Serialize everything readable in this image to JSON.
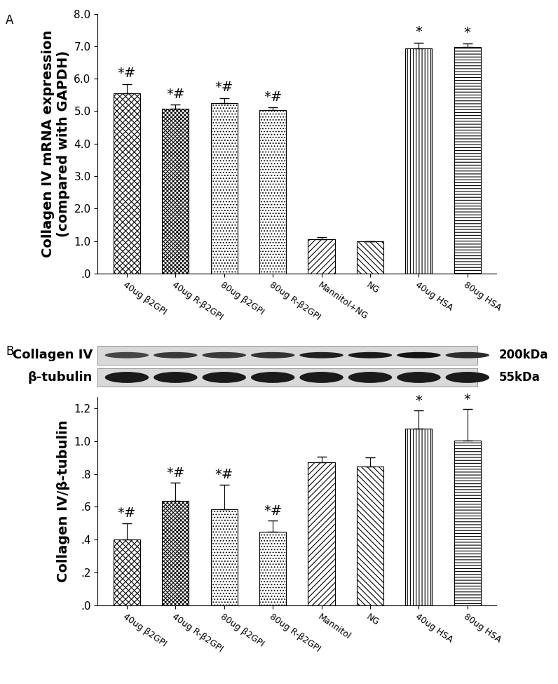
{
  "chart_data": [
    {
      "type": "bar",
      "panel": "A",
      "y_label": "Collagen IV mRNA expression\n(compared with GAPDH)",
      "categories": [
        "40ug β2GPI",
        "40ug R-β2GPI",
        "80ug β2GPI",
        "80ug R-β2GPI",
        "Mannitol+NG",
        "NG",
        "40ug HSA",
        "80ug HSA"
      ],
      "values": [
        5.55,
        5.08,
        5.25,
        5.03,
        1.05,
        1.0,
        6.93,
        6.97
      ],
      "errors": [
        0.28,
        0.12,
        0.15,
        0.08,
        0.08,
        0.0,
        0.18,
        0.12
      ],
      "annotations": [
        "*#",
        "*#",
        "*#",
        "*#",
        null,
        null,
        "*",
        "*"
      ],
      "color": "#ffffff",
      "ylim": [
        0,
        8
      ],
      "yticks": [
        {
          "value": 0,
          "label": ".0"
        },
        {
          "value": 1,
          "label": "1.0"
        },
        {
          "value": 2,
          "label": "2.0"
        },
        {
          "value": 3,
          "label": "3.0"
        },
        {
          "value": 4,
          "label": "4.0"
        },
        {
          "value": 5,
          "label": "5.0"
        },
        {
          "value": 6,
          "label": "6.0"
        },
        {
          "value": 7,
          "label": "7.0"
        },
        {
          "value": 8,
          "label": "8.0"
        }
      ],
      "grid": false
    },
    {
      "type": "bar",
      "panel": "B",
      "blot": [
        {
          "label": "Collagen IV",
          "size": "200kDa"
        },
        {
          "label": "β-tubulin",
          "size": "55kDa"
        }
      ],
      "y_label": "Collagen IV/β-tubulin",
      "categories": [
        "40ug β2GPI",
        "40ug R-β2GPI",
        "80ug β2GPI",
        "80ug R-β2GPI",
        "Mannitol",
        "NG",
        "40ug HSA",
        "80ug HSA"
      ],
      "values": [
        0.4,
        0.635,
        0.585,
        0.45,
        0.87,
        0.845,
        1.075,
        1.005
      ],
      "errors": [
        0.1,
        0.11,
        0.15,
        0.065,
        0.035,
        0.055,
        0.11,
        0.19
      ],
      "annotations": [
        "*#",
        "*#",
        "*#",
        "*#",
        null,
        null,
        "*",
        "*"
      ],
      "color": "#ffffff",
      "ylim": [
        0,
        1.27
      ],
      "yticks": [
        {
          "value": 0,
          "label": ".0"
        },
        {
          "value": 0.2,
          "label": ".2"
        },
        {
          "value": 0.4,
          "label": ".4"
        },
        {
          "value": 0.6,
          "label": ".6"
        },
        {
          "value": 0.8,
          "label": ".8"
        },
        {
          "value": 1.0,
          "label": "1.0"
        },
        {
          "value": 1.2,
          "label": "1.2"
        }
      ],
      "grid": false
    }
  ]
}
